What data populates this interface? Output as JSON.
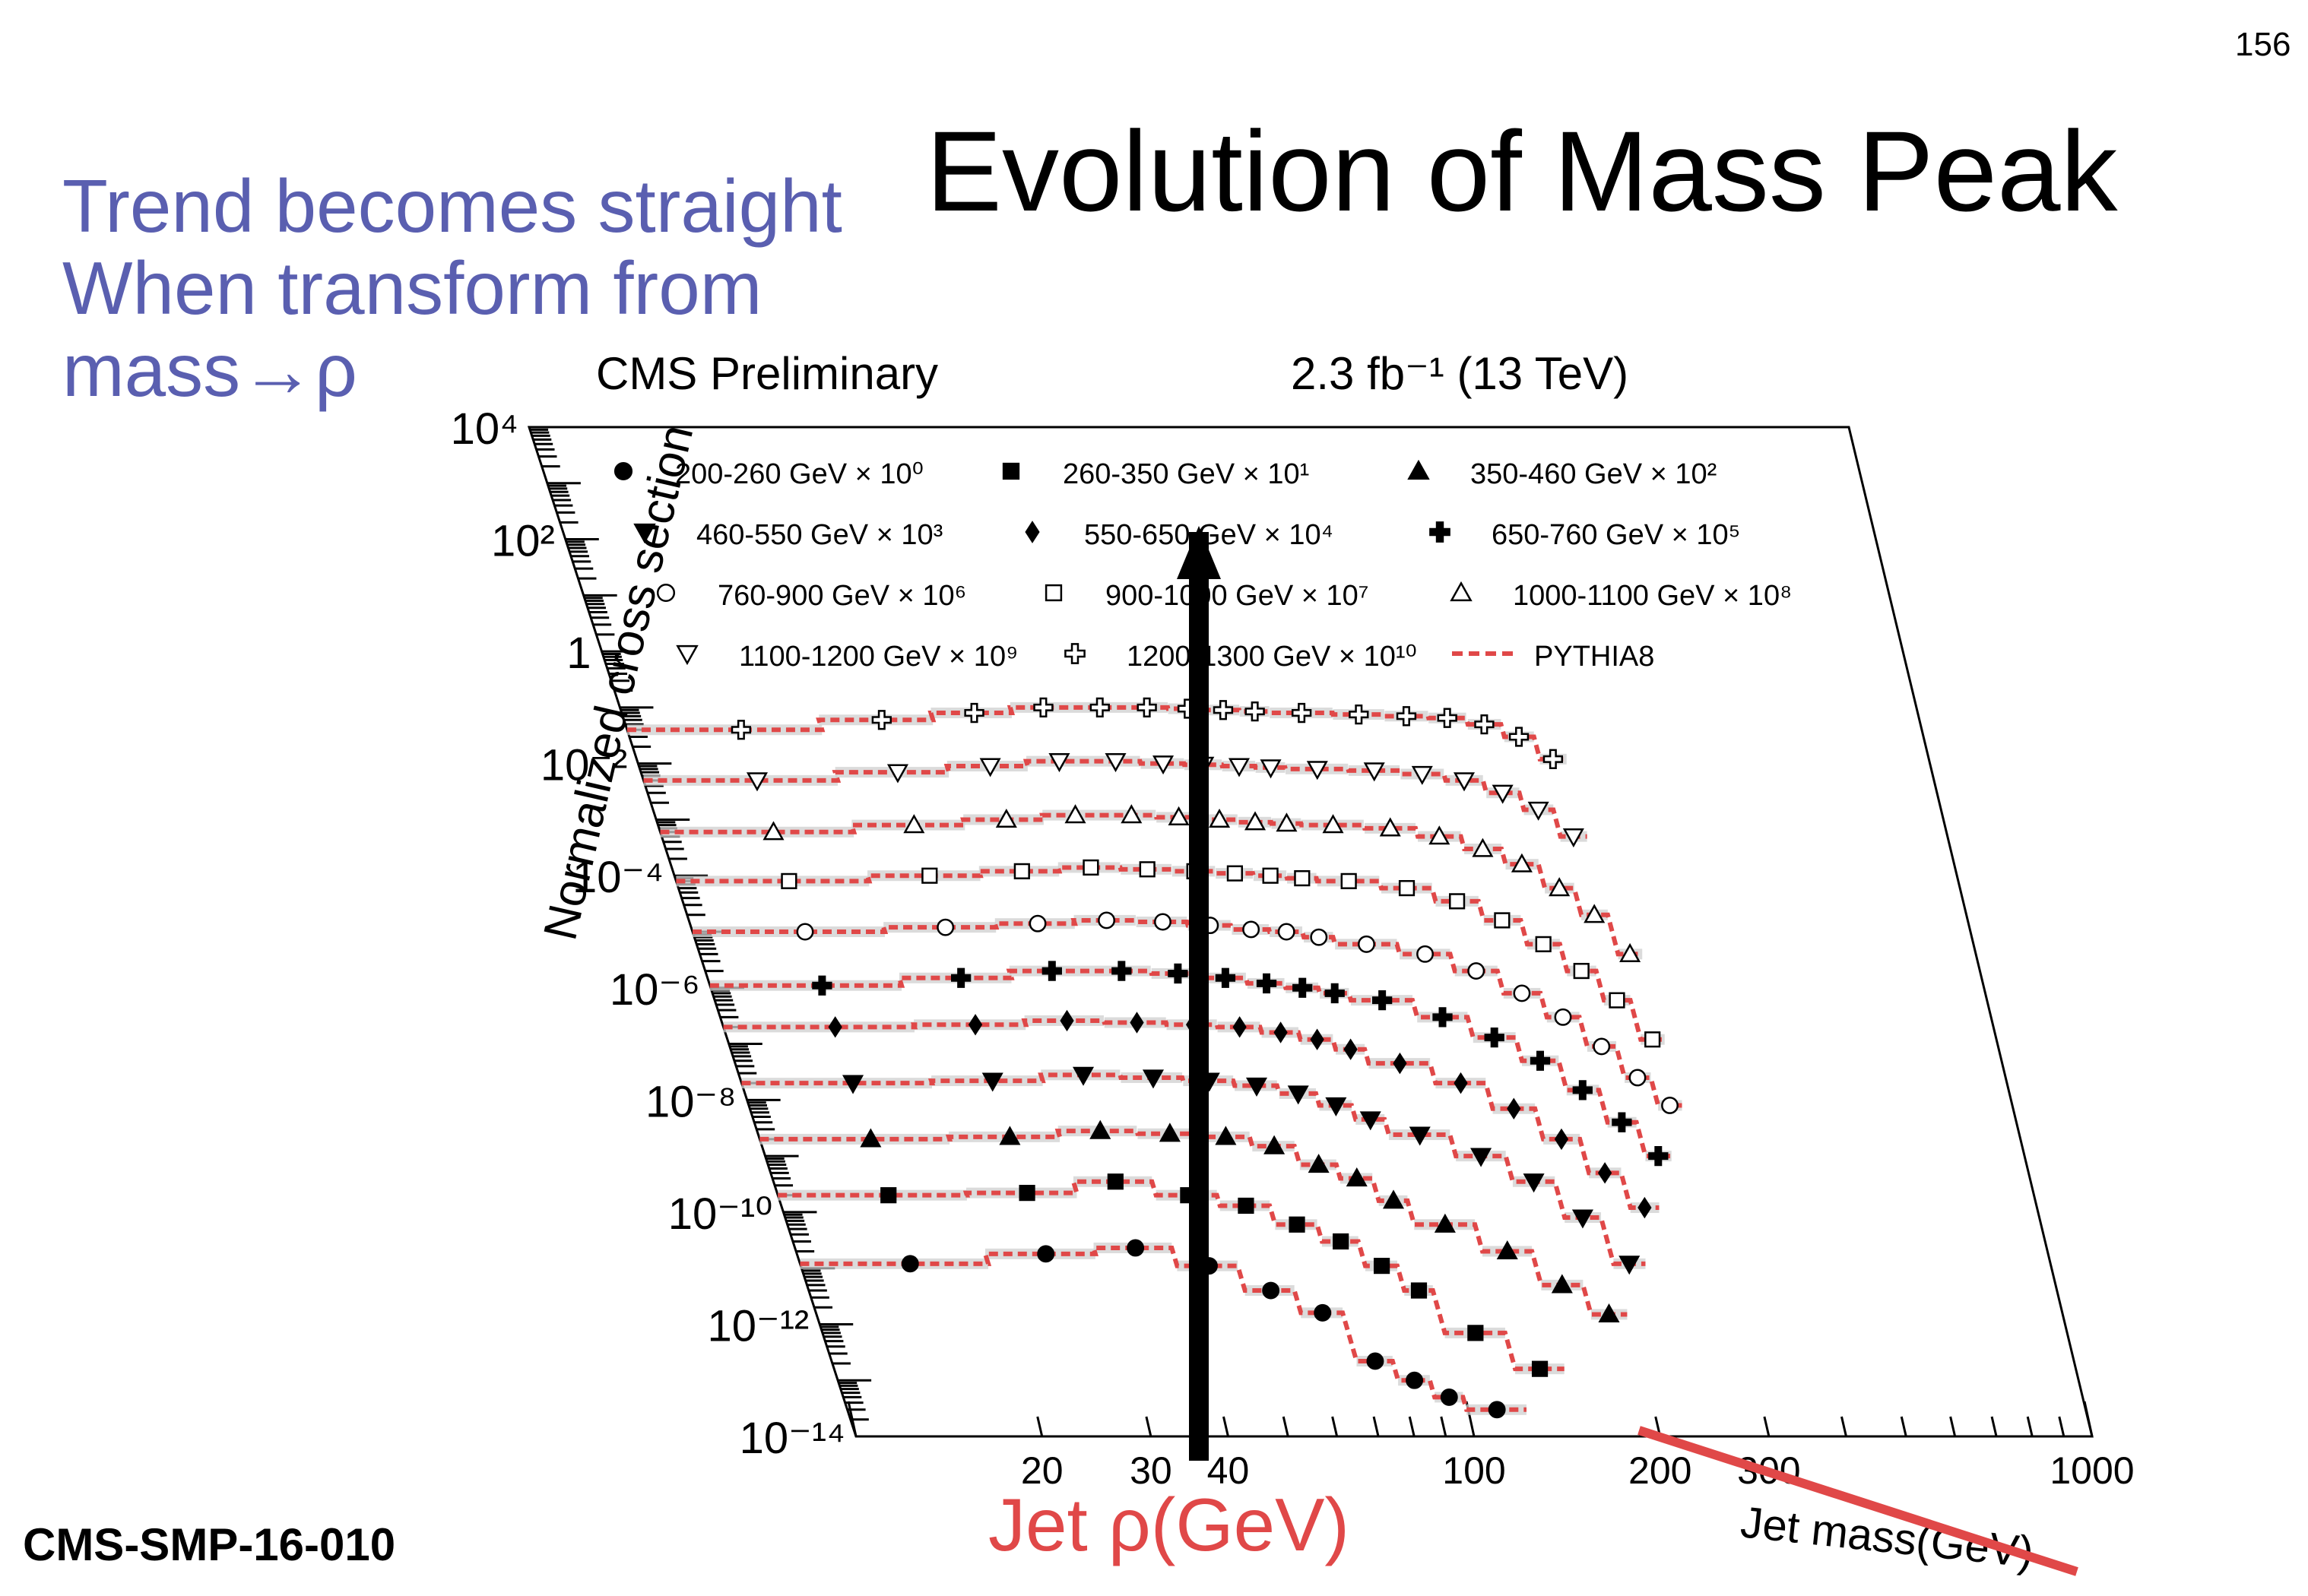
{
  "slide": {
    "page_number": "156",
    "title": "Evolution of Mass Peak",
    "notes": [
      "Trend becomes  straight",
      "When transform from",
      "mass→ρ"
    ],
    "reference": "CMS-SMP-16-010",
    "rho_label": "Jet ρ(GeV)",
    "note_color": "#5a5fb0",
    "annotation_color": "#e04848"
  },
  "chart_data": {
    "type": "line",
    "header_left": "CMS Preliminary",
    "header_right": "2.3 fb⁻¹ (13 TeV)",
    "ylabel": "Normalized cross section",
    "xlabel": "Jet mass(GeV)",
    "x_scale": "log",
    "y_scale": "log",
    "xlim": [
      10,
      1000
    ],
    "ylim": [
      1e-14,
      10000
    ],
    "x_tick_labels": [
      "20",
      "30",
      "40",
      "100",
      "200",
      "300",
      "1000"
    ],
    "y_tick_labels": [
      "10⁴",
      "10²",
      "1",
      "10⁻²",
      "10⁻⁴",
      "10⁻⁶",
      "10⁻⁸",
      "10⁻¹⁰",
      "10⁻¹²",
      "10⁻¹⁴"
    ],
    "legend": [
      {
        "label": "200-260 GeV × 10⁰",
        "marker": "circle-filled"
      },
      {
        "label": "260-350 GeV × 10¹",
        "marker": "square-filled"
      },
      {
        "label": "350-460 GeV × 10²",
        "marker": "triangle-up-filled"
      },
      {
        "label": "460-550 GeV × 10³",
        "marker": "triangle-down-filled"
      },
      {
        "label": "550-650 GeV × 10⁴",
        "marker": "diamond-filled"
      },
      {
        "label": "650-760 GeV × 10⁵",
        "marker": "cross-filled"
      },
      {
        "label": "760-900 GeV × 10⁶",
        "marker": "circle-open"
      },
      {
        "label": "900-1000 GeV × 10⁷",
        "marker": "square-open"
      },
      {
        "label": "1000-1100 GeV × 10⁸",
        "marker": "triangle-up-open"
      },
      {
        "label": "1100-1200 GeV × 10⁹",
        "marker": "triangle-down-open"
      },
      {
        "label": "1200-1300 GeV × 10¹⁰",
        "marker": "cross-open"
      },
      {
        "label": "PYTHIA8",
        "marker": "dashed-line"
      }
    ],
    "mass_bins": [
      10,
      20,
      30,
      40,
      50,
      60,
      70,
      80,
      90,
      100,
      125,
      150,
      175,
      200,
      225,
      250,
      275,
      300,
      325,
      350,
      375,
      400,
      450,
      500,
      550,
      600,
      650,
      700
    ],
    "series": [
      {
        "name": "200-260 GeV × 10⁰",
        "marker": "circle-filled",
        "x": [
          15,
          25,
          35,
          45,
          55,
          65,
          75,
          85,
          95,
          112
        ],
        "y": [
          1.2e-11,
          1.8e-11,
          2.3e-11,
          1.1e-11,
          4e-12,
          1.6e-12,
          2.2e-13,
          1e-13,
          5e-14,
          3e-14
        ]
      },
      {
        "name": "260-350 GeV × 10¹",
        "marker": "square-filled",
        "x": [
          15,
          25,
          35,
          45,
          55,
          65,
          75,
          85,
          95,
          112,
          137
        ],
        "y": [
          2e-10,
          2.2e-10,
          3.5e-10,
          2e-10,
          1.3e-10,
          6e-11,
          3e-11,
          1.1e-11,
          4e-12,
          7e-13,
          1.6e-13
        ]
      },
      {
        "name": "350-460 GeV × 10²",
        "marker": "triangle-up-filled",
        "x": [
          15,
          25,
          35,
          45,
          55,
          65,
          75,
          85,
          95,
          112,
          137,
          162,
          187
        ],
        "y": [
          2e-09,
          2.2e-09,
          2.8e-09,
          2.5e-09,
          2.2e-09,
          1.5e-09,
          7e-10,
          4e-10,
          1.6e-10,
          6e-11,
          2e-11,
          5e-12,
          1.5e-12
        ]
      },
      {
        "name": "460-550 GeV × 10³",
        "marker": "triangle-down-filled",
        "x": [
          15,
          25,
          35,
          45,
          55,
          65,
          75,
          85,
          95,
          112,
          137,
          162,
          187,
          212
        ],
        "y": [
          2e-08,
          2.2e-08,
          2.8e-08,
          2.5e-08,
          2.2e-08,
          1.8e-08,
          1.3e-08,
          8e-09,
          4.5e-09,
          2.4e-09,
          1e-09,
          3.5e-10,
          8e-11,
          1.2e-11
        ]
      },
      {
        "name": "550-650 GeV × 10⁴",
        "marker": "diamond-filled",
        "x": [
          15,
          25,
          35,
          45,
          55,
          65,
          75,
          85,
          95,
          112,
          137,
          162,
          187,
          212,
          237
        ],
        "y": [
          2e-07,
          2.2e-07,
          2.6e-07,
          2.4e-07,
          2.2e-07,
          2e-07,
          1.6e-07,
          1.2e-07,
          8e-08,
          4.5e-08,
          2e-08,
          7e-09,
          2e-09,
          5e-10,
          1.2e-10
        ]
      },
      {
        "name": "650-760 GeV × 10⁵",
        "marker": "cross-filled",
        "x": [
          15,
          25,
          35,
          45,
          55,
          65,
          75,
          85,
          95,
          112,
          137,
          162,
          187,
          212,
          237,
          262
        ],
        "y": [
          1.1e-06,
          1.5e-06,
          2e-06,
          2e-06,
          1.8e-06,
          1.5e-06,
          1.2e-06,
          1e-06,
          8e-07,
          6e-07,
          3e-07,
          1.3e-07,
          5e-08,
          1.5e-08,
          4e-09,
          1e-09
        ]
      },
      {
        "name": "760-900 GeV × 10⁶",
        "marker": "circle-open",
        "x": [
          15,
          25,
          35,
          45,
          55,
          65,
          75,
          85,
          95,
          112,
          137,
          162,
          187,
          212,
          237,
          262,
          287
        ],
        "y": [
          1e-05,
          1.2e-05,
          1.4e-05,
          1.6e-05,
          1.5e-05,
          1.3e-05,
          1.1e-05,
          1e-05,
          8e-06,
          6e-06,
          4e-06,
          2e-06,
          8e-07,
          3e-07,
          9e-08,
          2.5e-08,
          8e-09
        ]
      },
      {
        "name": "900-1000 GeV × 10⁷",
        "marker": "square-open",
        "x": [
          15,
          25,
          35,
          45,
          55,
          65,
          75,
          85,
          95,
          112,
          137,
          162,
          187,
          212,
          237,
          262,
          287
        ],
        "y": [
          8e-05,
          0.0001,
          0.00012,
          0.00014,
          0.00013,
          0.00012,
          0.00011,
          0.0001,
          9e-05,
          8e-05,
          6e-05,
          3.5e-05,
          1.6e-05,
          6e-06,
          2e-06,
          6e-07,
          1.2e-07
        ]
      },
      {
        "name": "1000-1100 GeV × 10⁸",
        "marker": "triangle-up-open",
        "x": [
          15,
          25,
          35,
          45,
          55,
          65,
          75,
          85,
          95,
          112,
          137,
          162,
          187,
          212,
          237,
          262,
          287
        ],
        "y": [
          0.0006,
          0.0008,
          0.001,
          0.0012,
          0.0012,
          0.0011,
          0.001,
          0.0009,
          0.00085,
          0.0008,
          0.0007,
          0.0005,
          0.0003,
          0.00016,
          6e-05,
          2e-05,
          4e-06
        ]
      },
      {
        "name": "1100-1200 GeV × 10⁹",
        "marker": "triangle-down-open",
        "x": [
          15,
          25,
          35,
          45,
          55,
          65,
          75,
          85,
          95,
          112,
          137,
          162,
          187,
          212,
          237,
          262
        ],
        "y": [
          0.005,
          0.007,
          0.009,
          0.011,
          0.011,
          0.01,
          0.0095,
          0.009,
          0.0085,
          0.008,
          0.0075,
          0.0065,
          0.005,
          0.003,
          0.0015,
          0.0005
        ]
      },
      {
        "name": "1200-1300 GeV × 10¹⁰",
        "marker": "cross-open",
        "x": [
          15,
          25,
          35,
          45,
          55,
          65,
          75,
          85,
          95,
          112,
          137,
          162,
          187,
          212,
          237,
          262
        ],
        "y": [
          0.04,
          0.06,
          0.08,
          0.1,
          0.1,
          0.1,
          0.095,
          0.09,
          0.085,
          0.08,
          0.075,
          0.07,
          0.065,
          0.05,
          0.03,
          0.012
        ]
      }
    ],
    "grid": false,
    "legend_placement": "top"
  }
}
